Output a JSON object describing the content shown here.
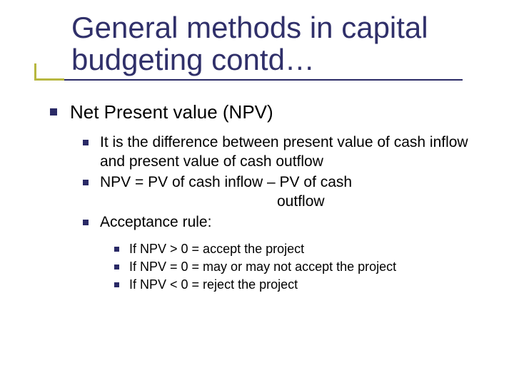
{
  "colors": {
    "title": "#30306a",
    "accent": "#b7b740",
    "underline": "#2a2a66",
    "bullet": "#2a2a66",
    "text": "#000000",
    "background": "#ffffff"
  },
  "typography": {
    "family": "Verdana",
    "title_size_pt": 42,
    "lvl1_size_pt": 26,
    "lvl2_size_pt": 21,
    "lvl3_size_pt": 18
  },
  "title": "General methods in capital budgeting contd…",
  "lvl1": {
    "heading": "Net Present value (NPV)",
    "items": [
      {
        "text": "It is the difference between present value of cash inflow and present value of cash outflow"
      },
      {
        "text": "NPV = PV of cash inflow – PV of cash",
        "cont": "outflow"
      },
      {
        "text": "Acceptance rule:",
        "sub": [
          "If NPV > 0 = accept the project",
          "If NPV = 0 = may or may not accept the project",
          "If NPV < 0 = reject the project"
        ]
      }
    ]
  }
}
